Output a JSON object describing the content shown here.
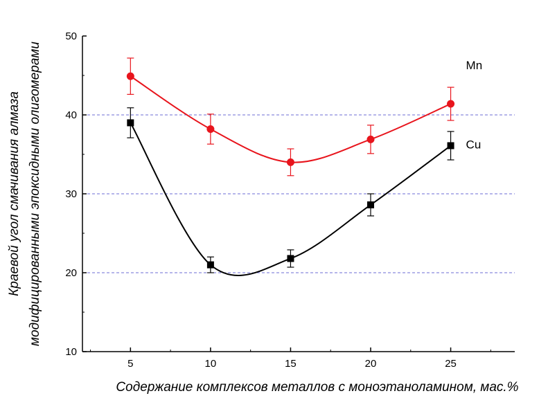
{
  "chart_data": {
    "type": "line",
    "title": "",
    "xlabel": "Содержание комплексов металлов с моноэтаноламином, мас.%",
    "ylabel": [
      "Краевой угол смачивания алмаза",
      "модифицированными эпоксидными олигомерами"
    ],
    "xlim": [
      2,
      29
    ],
    "ylim": [
      10,
      50
    ],
    "x_ticks": [
      "5",
      "10",
      "15",
      "20",
      "25"
    ],
    "y_ticks": [
      "10",
      "20",
      "30",
      "40",
      "50"
    ],
    "grid": "horizontal dashed at 20, 30, 40",
    "x": [
      5,
      10,
      15,
      20,
      25
    ],
    "series": [
      {
        "name": "Mn",
        "color": "#e8141c",
        "marker": "circle",
        "values": [
          44.9,
          38.2,
          34.0,
          36.9,
          41.4
        ],
        "errors": [
          2.3,
          1.9,
          1.7,
          1.8,
          2.1
        ]
      },
      {
        "name": "Cu",
        "color": "#000000",
        "marker": "square",
        "values": [
          39.0,
          21.0,
          21.8,
          28.6,
          36.1
        ],
        "errors": [
          1.9,
          1.0,
          1.1,
          1.4,
          1.8
        ]
      }
    ]
  }
}
